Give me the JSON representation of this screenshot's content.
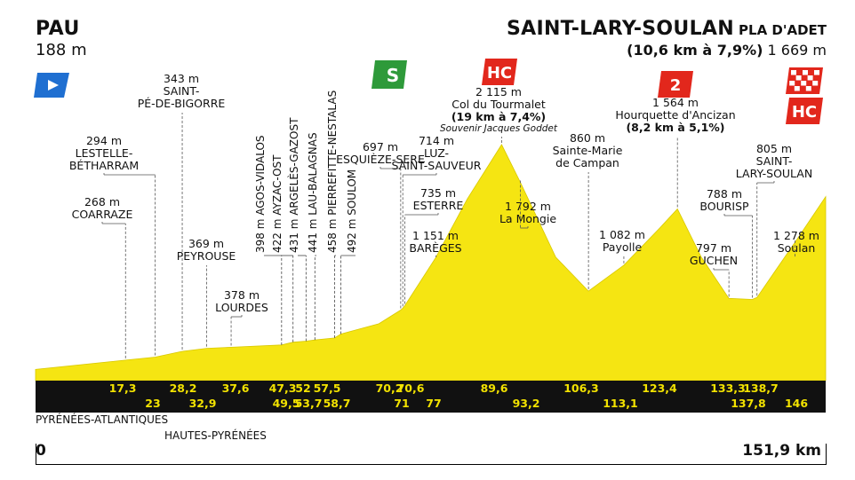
{
  "colors": {
    "profile_fill": "#f5e512",
    "band": "#111111",
    "km_text": "#f2e200",
    "hc": "#e2271c",
    "sprint": "#2e9a3a",
    "start_flag": "#1f6fd1"
  },
  "header": {
    "start_name": "PAU",
    "start_alt": "188 m",
    "finish_name": "SAINT-LARY-SOULAN",
    "finish_suffix": "PLA D'ADET",
    "finish_climb": "(10,6 km à 7,9%)",
    "finish_alt": "1 669 m"
  },
  "regions": [
    "PYRÉNÉES-ATLANTIQUES",
    "HAUTES-PYRÉNÉES"
  ],
  "km_start": "0",
  "km_end": "151,9 km",
  "badges": {
    "sprint": "S",
    "hc": "HC",
    "cat2": "2",
    "finish_hc": "HC"
  },
  "chart_data": {
    "type": "area",
    "xlim": [
      0,
      151.9
    ],
    "ylim": [
      0,
      2200
    ],
    "profile": {
      "x": [
        0,
        17.3,
        23,
        28.2,
        32.9,
        37.6,
        47.3,
        49.5,
        52,
        53.7,
        57.5,
        58.7,
        66,
        70.2,
        70.6,
        71,
        77,
        83,
        89.6,
        93.2,
        100,
        106.3,
        113.1,
        120,
        123.4,
        128,
        133.3,
        137.8,
        138.7,
        142,
        146,
        151.9
      ],
      "y": [
        188,
        268,
        294,
        343,
        369,
        378,
        398,
        422,
        431,
        441,
        458,
        492,
        580,
        697,
        714,
        735,
        1151,
        1650,
        2115,
        1792,
        1150,
        860,
        1082,
        1400,
        1564,
        1150,
        797,
        788,
        805,
        1020,
        1278,
        1669
      ]
    },
    "landmarks": [
      {
        "km": "17,3",
        "x": 17.3,
        "alt": "268 m",
        "name": "COARRAZE"
      },
      {
        "km": "23",
        "x": 23,
        "alt": "294 m",
        "name": "LESTELLE-BÉTHARRAM"
      },
      {
        "km": "28,2",
        "x": 28.2,
        "alt": "343 m",
        "name": "SAINT-PÉ-DE-BIGORRE"
      },
      {
        "km": "32,9",
        "x": 32.9,
        "alt": "369 m",
        "name": "PEYROUSE"
      },
      {
        "km": "37,6",
        "x": 37.6,
        "alt": "378 m",
        "name": "LOURDES"
      },
      {
        "km": "47,3",
        "x": 47.3,
        "alt": "398 m",
        "name": "AGOS-VIDALOS"
      },
      {
        "km": "49,5",
        "x": 49.5,
        "alt": "422 m",
        "name": "AYZAC-OST"
      },
      {
        "km": "52",
        "x": 52,
        "alt": "431 m",
        "name": "ARGELÈS-GAZOST"
      },
      {
        "km": "53,7",
        "x": 53.7,
        "alt": "441 m",
        "name": "LAU-BALAGNAS"
      },
      {
        "km": "57,5",
        "x": 57.5,
        "alt": "458 m",
        "name": "PIERREFITTE-NESTALAS"
      },
      {
        "km": "58,7",
        "x": 58.7,
        "alt": "492 m",
        "name": "SOULOM"
      },
      {
        "km": "70,2",
        "x": 70.2,
        "alt": "697 m",
        "name": "ESQUIÈZE-SERE"
      },
      {
        "km": "70,6",
        "x": 70.6,
        "alt": "714 m",
        "name": "LUZ-SAINT-SAUVEUR"
      },
      {
        "km": "71",
        "x": 71,
        "alt": "735 m",
        "name": "ESTERRE"
      },
      {
        "km": "77",
        "x": 77,
        "alt": "1 151 m",
        "name": "BARÈGES"
      },
      {
        "km": "89,6",
        "x": 89.6,
        "alt": "2 115 m",
        "name": "Col du Tourmalet",
        "climb": "(19 km à 7,4%)",
        "note": "Souvenir Jacques Goddet"
      },
      {
        "km": "93,2",
        "x": 93.2,
        "alt": "1 792 m",
        "name": "La Mongie"
      },
      {
        "km": "106,3",
        "x": 106.3,
        "alt": "860 m",
        "name": "Sainte-Marie de Campan"
      },
      {
        "km": "113,1",
        "x": 113.1,
        "alt": "1 082 m",
        "name": "Payolle"
      },
      {
        "km": "123,4",
        "x": 123.4,
        "alt": "1 564 m",
        "name": "Hourquette d'Ancizan",
        "climb": "(8,2 km à 5,1%)"
      },
      {
        "km": "133,3",
        "x": 133.3,
        "alt": "797 m",
        "name": "GUCHEN"
      },
      {
        "km": "137,8",
        "x": 137.8,
        "alt": "788 m",
        "name": "BOURISP"
      },
      {
        "km": "138,7",
        "x": 138.7,
        "alt": "805 m",
        "name": "SAINT-LARY-SOULAN"
      },
      {
        "km": "146",
        "x": 146,
        "alt": "1 278 m",
        "name": "Soulan"
      }
    ]
  }
}
